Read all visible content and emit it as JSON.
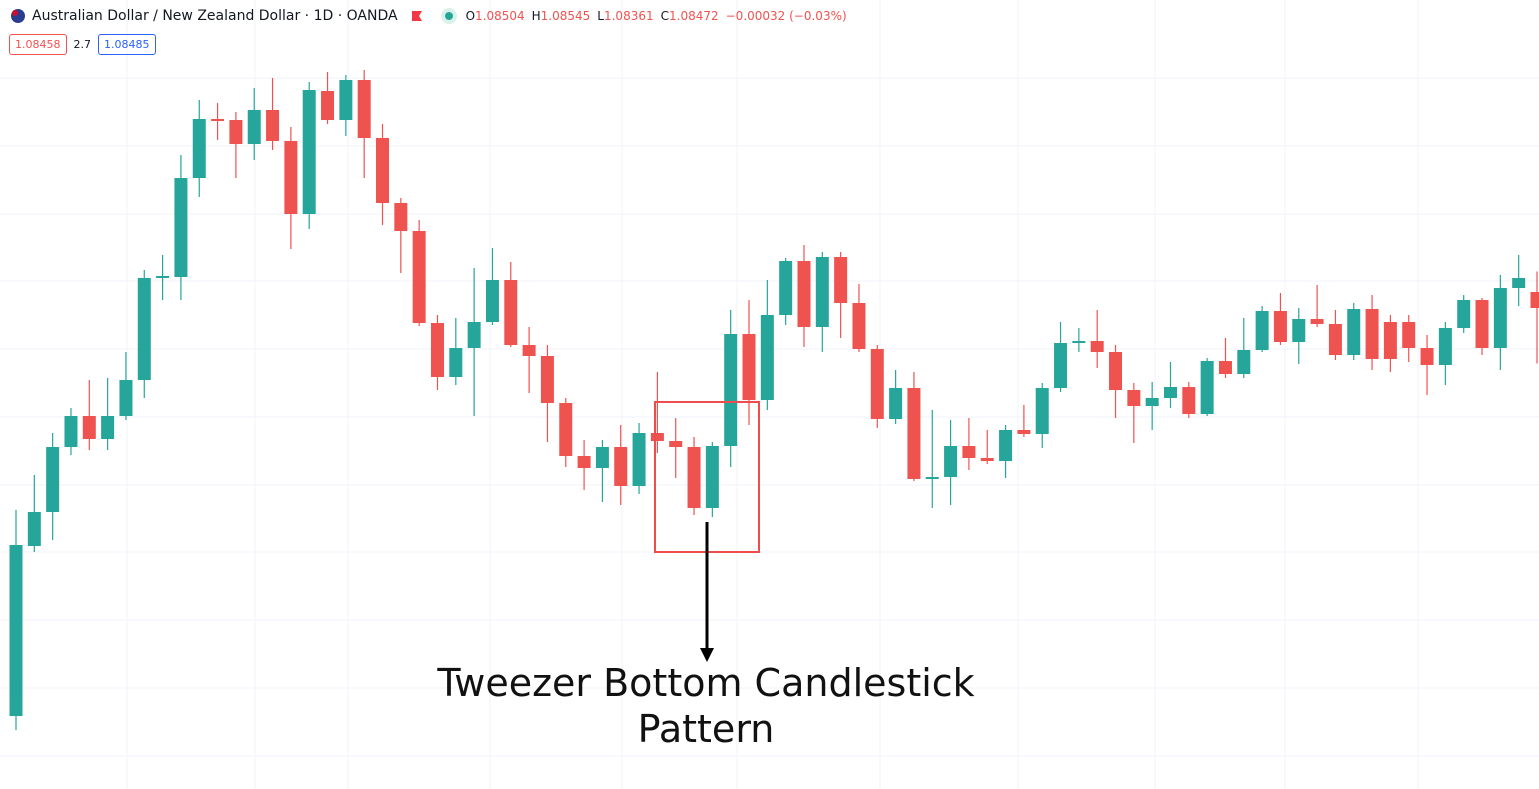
{
  "header": {
    "title": "Australian Dollar / New Zealand Dollar · 1D · OANDA",
    "ohlc": [
      {
        "key": "O",
        "value": "1.08504"
      },
      {
        "key": "H",
        "value": "1.08545"
      },
      {
        "key": "L",
        "value": "1.08361"
      },
      {
        "key": "C",
        "value": "1.08472"
      }
    ],
    "change": "−0.00032 (−0.03%)",
    "bid": "1.08458",
    "spread": "2.7",
    "ask": "1.08485"
  },
  "chart_data": {
    "type": "candlestick",
    "annotation": "Tweezer Bottom Candlestick Pattern",
    "ylim": [
      1.0751,
      1.09088
    ],
    "up_color": "#26a69a",
    "down_color": "#ef5350",
    "open": [
      1.07656,
      1.07996,
      1.08064,
      1.08194,
      1.08256,
      1.0821,
      1.08256,
      1.08328,
      1.08532,
      1.08534,
      1.08732,
      1.0885,
      1.08848,
      1.088,
      1.08868,
      1.08806,
      1.0866,
      1.08906,
      1.08848,
      1.08928,
      1.08812,
      1.08682,
      1.08626,
      1.08442,
      1.08334,
      1.08392,
      1.08444,
      1.08528,
      1.08398,
      1.08376,
      1.08282,
      1.08176,
      1.08152,
      1.08194,
      1.08116,
      1.08222,
      1.08206,
      1.08194,
      1.08072,
      1.08196,
      1.0842,
      1.08288,
      1.08458,
      1.08566,
      1.08434,
      1.08574,
      1.08482,
      1.0839,
      1.0825,
      1.08312,
      1.0813,
      1.08134,
      1.08196,
      1.08172,
      1.08166,
      1.08228,
      1.0822,
      1.08312,
      1.08402,
      1.08406,
      1.08384,
      1.08308,
      1.08276,
      1.08292,
      1.08314,
      1.0826,
      1.08366,
      1.0834,
      1.08388,
      1.08466,
      1.08404,
      1.0845,
      1.0844,
      1.08378,
      1.0847,
      1.08444,
      1.08444,
      1.08392,
      1.08358,
      1.08432,
      1.08488,
      1.08392,
      1.08512,
      1.08504
    ],
    "high": [
      1.08068,
      1.08138,
      1.08222,
      1.08272,
      1.08328,
      1.08332,
      1.08384,
      1.08548,
      1.08578,
      1.08778,
      1.08888,
      1.08882,
      1.08864,
      1.08912,
      1.08932,
      1.08834,
      1.08924,
      1.08944,
      1.08938,
      1.08948,
      1.0884,
      1.08692,
      1.08648,
      1.08458,
      1.08452,
      1.08552,
      1.08592,
      1.08564,
      1.08434,
      1.08398,
      1.08292,
      1.08208,
      1.08208,
      1.08238,
      1.08242,
      1.08344,
      1.08252,
      1.08214,
      1.08204,
      1.08468,
      1.08488,
      1.08528,
      1.08572,
      1.08598,
      1.08584,
      1.08584,
      1.0852,
      1.08398,
      1.08348,
      1.08344,
      1.08268,
      1.08248,
      1.08252,
      1.08228,
      1.08238,
      1.08278,
      1.08322,
      1.08444,
      1.08432,
      1.08468,
      1.08398,
      1.08322,
      1.08324,
      1.08364,
      1.08324,
      1.08372,
      1.08412,
      1.08452,
      1.08476,
      1.08502,
      1.08472,
      1.08518,
      1.08468,
      1.08482,
      1.08498,
      1.08458,
      1.08458,
      1.08418,
      1.08444,
      1.08498,
      1.08492,
      1.08538,
      1.08578,
      1.08545
    ],
    "low": [
      1.07628,
      1.07984,
      1.08008,
      1.08178,
      1.08188,
      1.08188,
      1.08248,
      1.08292,
      1.08488,
      1.08488,
      1.08694,
      1.08808,
      1.08732,
      1.08768,
      1.08788,
      1.0859,
      1.0863,
      1.0884,
      1.08816,
      1.08732,
      1.08638,
      1.08542,
      1.08436,
      1.08308,
      1.08318,
      1.08256,
      1.08438,
      1.08394,
      1.08302,
      1.08204,
      1.08154,
      1.08108,
      1.08084,
      1.08078,
      1.081,
      1.08182,
      1.08132,
      1.08058,
      1.08054,
      1.08154,
      1.08238,
      1.08268,
      1.08438,
      1.08394,
      1.08384,
      1.08412,
      1.08384,
      1.08232,
      1.0824,
      1.08126,
      1.08072,
      1.08078,
      1.08148,
      1.0816,
      1.08132,
      1.08214,
      1.08192,
      1.08304,
      1.08384,
      1.08352,
      1.08252,
      1.08202,
      1.08228,
      1.08272,
      1.08252,
      1.08256,
      1.08332,
      1.08332,
      1.08384,
      1.08398,
      1.0836,
      1.08434,
      1.08368,
      1.08368,
      1.08348,
      1.08344,
      1.08364,
      1.08298,
      1.08318,
      1.08422,
      1.08378,
      1.08348,
      1.08476,
      1.08361
    ],
    "close": [
      1.07998,
      1.08064,
      1.08194,
      1.08256,
      1.0821,
      1.08256,
      1.08328,
      1.08532,
      1.08536,
      1.08732,
      1.0885,
      1.08846,
      1.088,
      1.08868,
      1.08806,
      1.0866,
      1.08908,
      1.08848,
      1.08928,
      1.08812,
      1.08682,
      1.08626,
      1.08442,
      1.08334,
      1.08392,
      1.08444,
      1.08528,
      1.08398,
      1.08376,
      1.08282,
      1.08176,
      1.08152,
      1.08194,
      1.08116,
      1.08222,
      1.08206,
      1.08194,
      1.08072,
      1.08196,
      1.0842,
      1.08288,
      1.08458,
      1.08566,
      1.08434,
      1.08574,
      1.08482,
      1.0839,
      1.0825,
      1.08312,
      1.0813,
      1.08134,
      1.08196,
      1.08172,
      1.08166,
      1.08228,
      1.0822,
      1.08312,
      1.08402,
      1.08406,
      1.08384,
      1.08308,
      1.08276,
      1.08292,
      1.08314,
      1.0826,
      1.08366,
      1.0834,
      1.08388,
      1.08466,
      1.08404,
      1.0845,
      1.0844,
      1.08378,
      1.0847,
      1.0837,
      1.0837,
      1.08392,
      1.08358,
      1.08432,
      1.08488,
      1.08392,
      1.08512,
      1.08532,
      1.08472
    ]
  }
}
